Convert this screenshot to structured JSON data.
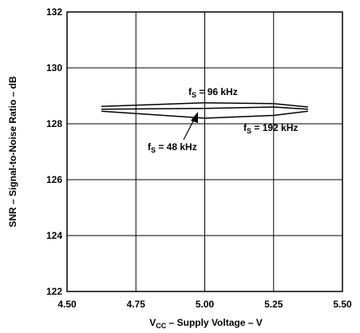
{
  "chart_data": {
    "type": "line",
    "xlabel": {
      "main": "V",
      "sub": "CC",
      "rest": " – Supply Voltage – V"
    },
    "ylabel": "SNR – Signal-to-Noise Ratio – dB",
    "xlim": [
      4.5,
      5.5
    ],
    "ylim": [
      122,
      132
    ],
    "xticks": [
      "4.50",
      "4.75",
      "5.00",
      "5.25",
      "5.50"
    ],
    "yticks": [
      "122",
      "124",
      "126",
      "128",
      "130",
      "132"
    ],
    "grid": true,
    "series": [
      {
        "name": "fS = 96 kHz",
        "x": [
          4.625,
          5.0,
          5.25,
          5.375
        ],
        "y": [
          128.62,
          128.75,
          128.72,
          128.6
        ]
      },
      {
        "name": "fS = 192 kHz",
        "x": [
          4.625,
          5.0,
          5.25,
          5.375
        ],
        "y": [
          128.45,
          128.2,
          128.3,
          128.45
        ]
      },
      {
        "name": "fS = 48 kHz",
        "x": [
          4.625,
          5.0,
          5.25,
          5.375
        ],
        "y": [
          128.52,
          128.55,
          128.6,
          128.52
        ]
      }
    ],
    "annotations": [
      {
        "main": "f",
        "sub": "S",
        "rest": " = 96 kHz"
      },
      {
        "main": "f",
        "sub": "S",
        "rest": " = 192 kHz"
      },
      {
        "main": "f",
        "sub": "S",
        "rest": " = 48 kHz"
      }
    ]
  }
}
